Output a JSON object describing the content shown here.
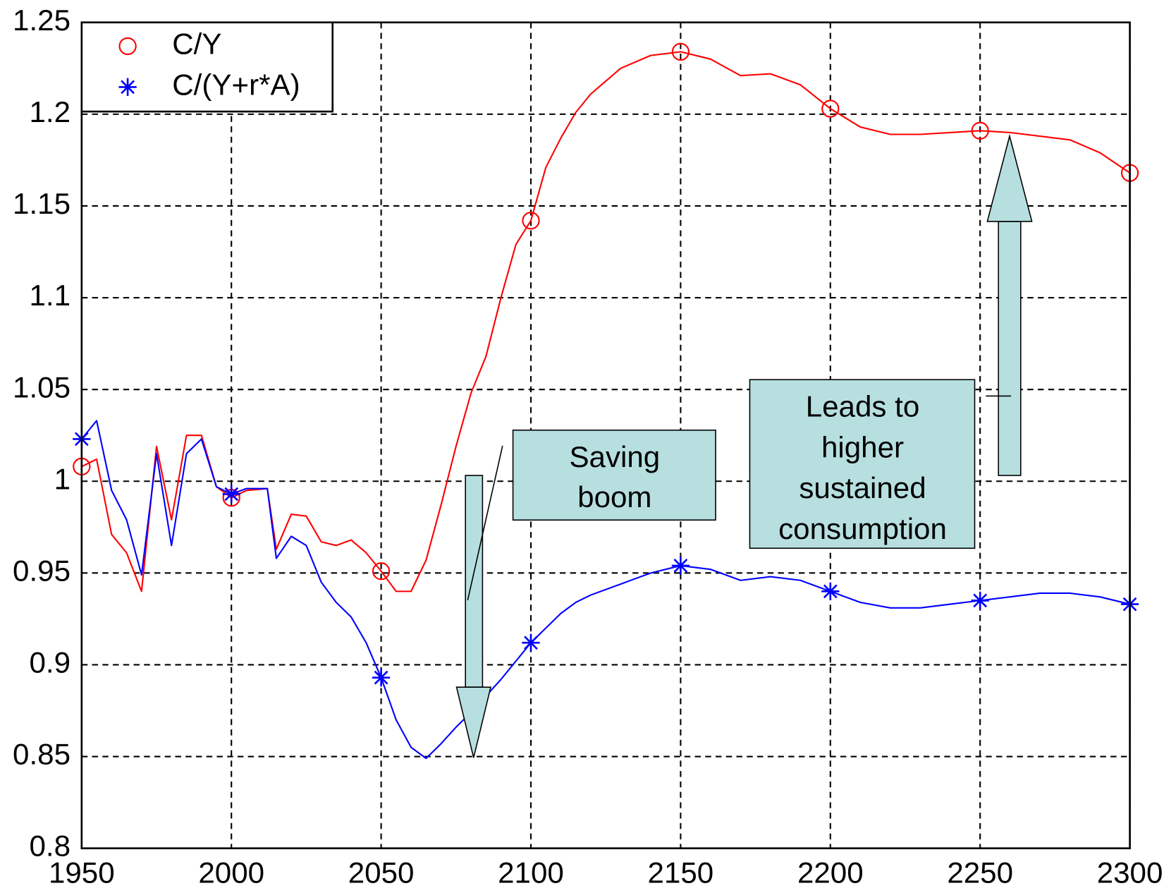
{
  "chart_data": {
    "type": "line",
    "x": [
      1950,
      1955,
      1960,
      1965,
      1970,
      1975,
      1980,
      1985,
      1990,
      1995,
      2000,
      2005,
      2012,
      2015,
      2020,
      2025,
      2030,
      2035,
      2040,
      2045,
      2050,
      2055,
      2060,
      2065,
      2070,
      2075,
      2080,
      2085,
      2090,
      2095,
      2100,
      2105,
      2110,
      2115,
      2120,
      2130,
      2140,
      2150,
      2160,
      2170,
      2180,
      2190,
      2200,
      2210,
      2220,
      2230,
      2240,
      2250,
      2260,
      2270,
      2280,
      2290,
      2300
    ],
    "series": [
      {
        "name": "C/Y",
        "color": "#ff0000",
        "marker": "circle",
        "values": [
          1.008,
          1.012,
          0.971,
          0.961,
          0.94,
          1.019,
          0.979,
          1.025,
          1.025,
          0.997,
          0.991,
          0.995,
          0.996,
          0.963,
          0.982,
          0.981,
          0.967,
          0.965,
          0.968,
          0.961,
          0.951,
          0.94,
          0.94,
          0.957,
          0.987,
          1.019,
          1.048,
          1.068,
          1.1,
          1.129,
          1.142,
          1.171,
          1.187,
          1.201,
          1.211,
          1.225,
          1.232,
          1.234,
          1.23,
          1.221,
          1.222,
          1.216,
          1.203,
          1.193,
          1.189,
          1.189,
          1.19,
          1.191,
          1.19,
          1.188,
          1.186,
          1.179,
          1.168
        ]
      },
      {
        "name": "C/(Y+r*A)",
        "color": "#0000ff",
        "marker": "asterisk",
        "values": [
          1.023,
          1.033,
          0.995,
          0.979,
          0.949,
          1.015,
          0.965,
          1.015,
          1.023,
          0.997,
          0.993,
          0.996,
          0.996,
          0.958,
          0.97,
          0.965,
          0.945,
          0.934,
          0.926,
          0.912,
          0.893,
          0.87,
          0.855,
          0.849,
          0.857,
          0.866,
          0.874,
          0.883,
          0.892,
          0.902,
          0.912,
          0.92,
          0.928,
          0.934,
          0.938,
          0.944,
          0.95,
          0.954,
          0.952,
          0.946,
          0.948,
          0.946,
          0.94,
          0.934,
          0.931,
          0.931,
          0.933,
          0.935,
          0.937,
          0.939,
          0.939,
          0.937,
          0.933
        ]
      }
    ],
    "xlim": [
      1950,
      2300
    ],
    "xticks": [
      1950,
      2000,
      2050,
      2100,
      2150,
      2200,
      2250,
      2300
    ],
    "ylim": [
      0.8,
      1.25
    ],
    "yticks": [
      0.8,
      0.85,
      0.9,
      0.95,
      1,
      1.05,
      1.1,
      1.15,
      1.2,
      1.25
    ],
    "marker_interval": 50,
    "grid": true,
    "legend": "upper left",
    "annotations": [
      {
        "lines": [
          "Saving",
          "boom"
        ]
      },
      {
        "lines": [
          "Leads to",
          "higher",
          "sustained",
          "consumption"
        ]
      }
    ]
  }
}
